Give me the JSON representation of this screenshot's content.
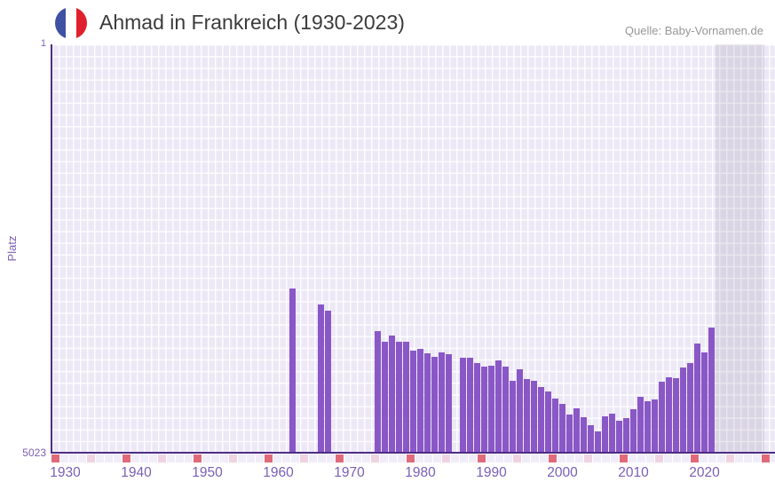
{
  "header": {
    "title": "Ahmad in Frankreich (1930-2023)",
    "source": "Quelle: Baby-Vornamen.de"
  },
  "chart_data": {
    "type": "bar",
    "title": "Ahmad in Frankreich (1930-2023)",
    "xlabel": "",
    "ylabel": "Platz",
    "y_axis": {
      "label_top": "1",
      "label_bottom": "5023",
      "best": 1,
      "worst": 5023,
      "inverted": true
    },
    "x_axis": {
      "min": 1930,
      "max": 2023,
      "tick_labels": [
        "1930",
        "1940",
        "1950",
        "1960",
        "1970",
        "1980",
        "1990",
        "2000",
        "2010",
        "2020"
      ]
    },
    "grid": true,
    "legend": false,
    "bar_color": "#8a57c6",
    "series": [
      {
        "name": "Platz",
        "points": [
          {
            "year": 1962,
            "rank": 3005
          },
          {
            "year": 1966,
            "rank": 3200
          },
          {
            "year": 1967,
            "rank": 3275
          },
          {
            "year": 1974,
            "rank": 3525
          },
          {
            "year": 1975,
            "rank": 3660
          },
          {
            "year": 1976,
            "rank": 3580
          },
          {
            "year": 1977,
            "rank": 3660
          },
          {
            "year": 1978,
            "rank": 3660
          },
          {
            "year": 1979,
            "rank": 3765
          },
          {
            "year": 1980,
            "rank": 3750
          },
          {
            "year": 1981,
            "rank": 3795
          },
          {
            "year": 1982,
            "rank": 3845
          },
          {
            "year": 1983,
            "rank": 3785
          },
          {
            "year": 1984,
            "rank": 3815
          },
          {
            "year": 1986,
            "rank": 3860
          },
          {
            "year": 1987,
            "rank": 3860
          },
          {
            "year": 1988,
            "rank": 3920
          },
          {
            "year": 1989,
            "rank": 3965
          },
          {
            "year": 1990,
            "rank": 3950
          },
          {
            "year": 1991,
            "rank": 3885
          },
          {
            "year": 1992,
            "rank": 3960
          },
          {
            "year": 1993,
            "rank": 4140
          },
          {
            "year": 1994,
            "rank": 3995
          },
          {
            "year": 1995,
            "rank": 4115
          },
          {
            "year": 1996,
            "rank": 4135
          },
          {
            "year": 1997,
            "rank": 4215
          },
          {
            "year": 1998,
            "rank": 4275
          },
          {
            "year": 1999,
            "rank": 4360
          },
          {
            "year": 2000,
            "rank": 4420
          },
          {
            "year": 2001,
            "rank": 4555
          },
          {
            "year": 2002,
            "rank": 4475
          },
          {
            "year": 2003,
            "rank": 4585
          },
          {
            "year": 2004,
            "rank": 4685
          },
          {
            "year": 2005,
            "rank": 4760
          },
          {
            "year": 2006,
            "rank": 4580
          },
          {
            "year": 2007,
            "rank": 4540
          },
          {
            "year": 2008,
            "rank": 4630
          },
          {
            "year": 2009,
            "rank": 4595
          },
          {
            "year": 2010,
            "rank": 4485
          },
          {
            "year": 2011,
            "rank": 4330
          },
          {
            "year": 2012,
            "rank": 4385
          },
          {
            "year": 2013,
            "rank": 4365
          },
          {
            "year": 2014,
            "rank": 4155
          },
          {
            "year": 2015,
            "rank": 4100
          },
          {
            "year": 2016,
            "rank": 4105
          },
          {
            "year": 2017,
            "rank": 3975
          },
          {
            "year": 2018,
            "rank": 3925
          },
          {
            "year": 2019,
            "rank": 3685
          },
          {
            "year": 2020,
            "rank": 3785
          },
          {
            "year": 2021,
            "rank": 3485
          }
        ]
      }
    ]
  },
  "colors": {
    "bar": "#8a57c6",
    "plot_background": "#ece8f5",
    "gridline": "#ffffff",
    "axis_line": "#4e2c85",
    "tick_label": "#7a5fb5",
    "title_text": "#3b3b3b",
    "source_text": "#979797",
    "flag_blue": "#3f51a3",
    "flag_white": "#ffffff",
    "flag_red": "#e0212d",
    "strip_red": "#e06a7a",
    "strip_pink": "#f0d3e0",
    "strip_light": "#f0ecf8"
  }
}
